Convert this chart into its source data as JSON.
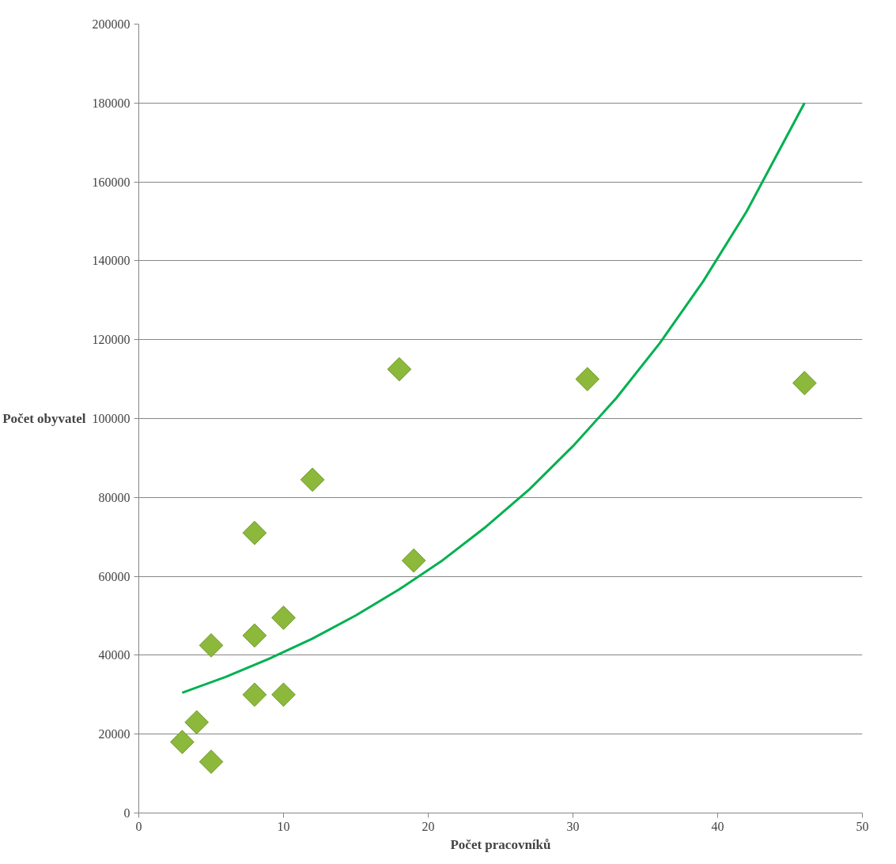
{
  "chart_data": {
    "type": "scatter",
    "xlabel": "Počet pracovníků",
    "ylabel": "Počet obyvatel",
    "xlim": [
      0,
      50
    ],
    "xticks": [
      0,
      10,
      20,
      30,
      40,
      50
    ],
    "ylim": [
      0,
      200000
    ],
    "yticks": [
      0,
      20000,
      40000,
      60000,
      80000,
      100000,
      120000,
      140000,
      160000,
      180000,
      200000
    ],
    "grid": "y",
    "marker": "diamond",
    "series": [
      {
        "color": "#8cb83c",
        "x": [
          3,
          4,
          5,
          5,
          8,
          8,
          8,
          10,
          10,
          12,
          18,
          19,
          31,
          46
        ],
        "values": [
          18000,
          23000,
          13000,
          42500,
          71000,
          45000,
          30000,
          49500,
          30000,
          84500,
          112500,
          64000,
          110000,
          109000
        ]
      },
      {
        "type": "line",
        "color": "#00b050",
        "marker": "none",
        "x": [
          3,
          6,
          9,
          12,
          15,
          18,
          21,
          24,
          27,
          30,
          33,
          36,
          39,
          42,
          46
        ],
        "values": [
          30500,
          34500,
          39100,
          44200,
          50100,
          56700,
          64100,
          72600,
          82100,
          93000,
          105200,
          119100,
          134800,
          152500,
          180000
        ]
      }
    ]
  }
}
